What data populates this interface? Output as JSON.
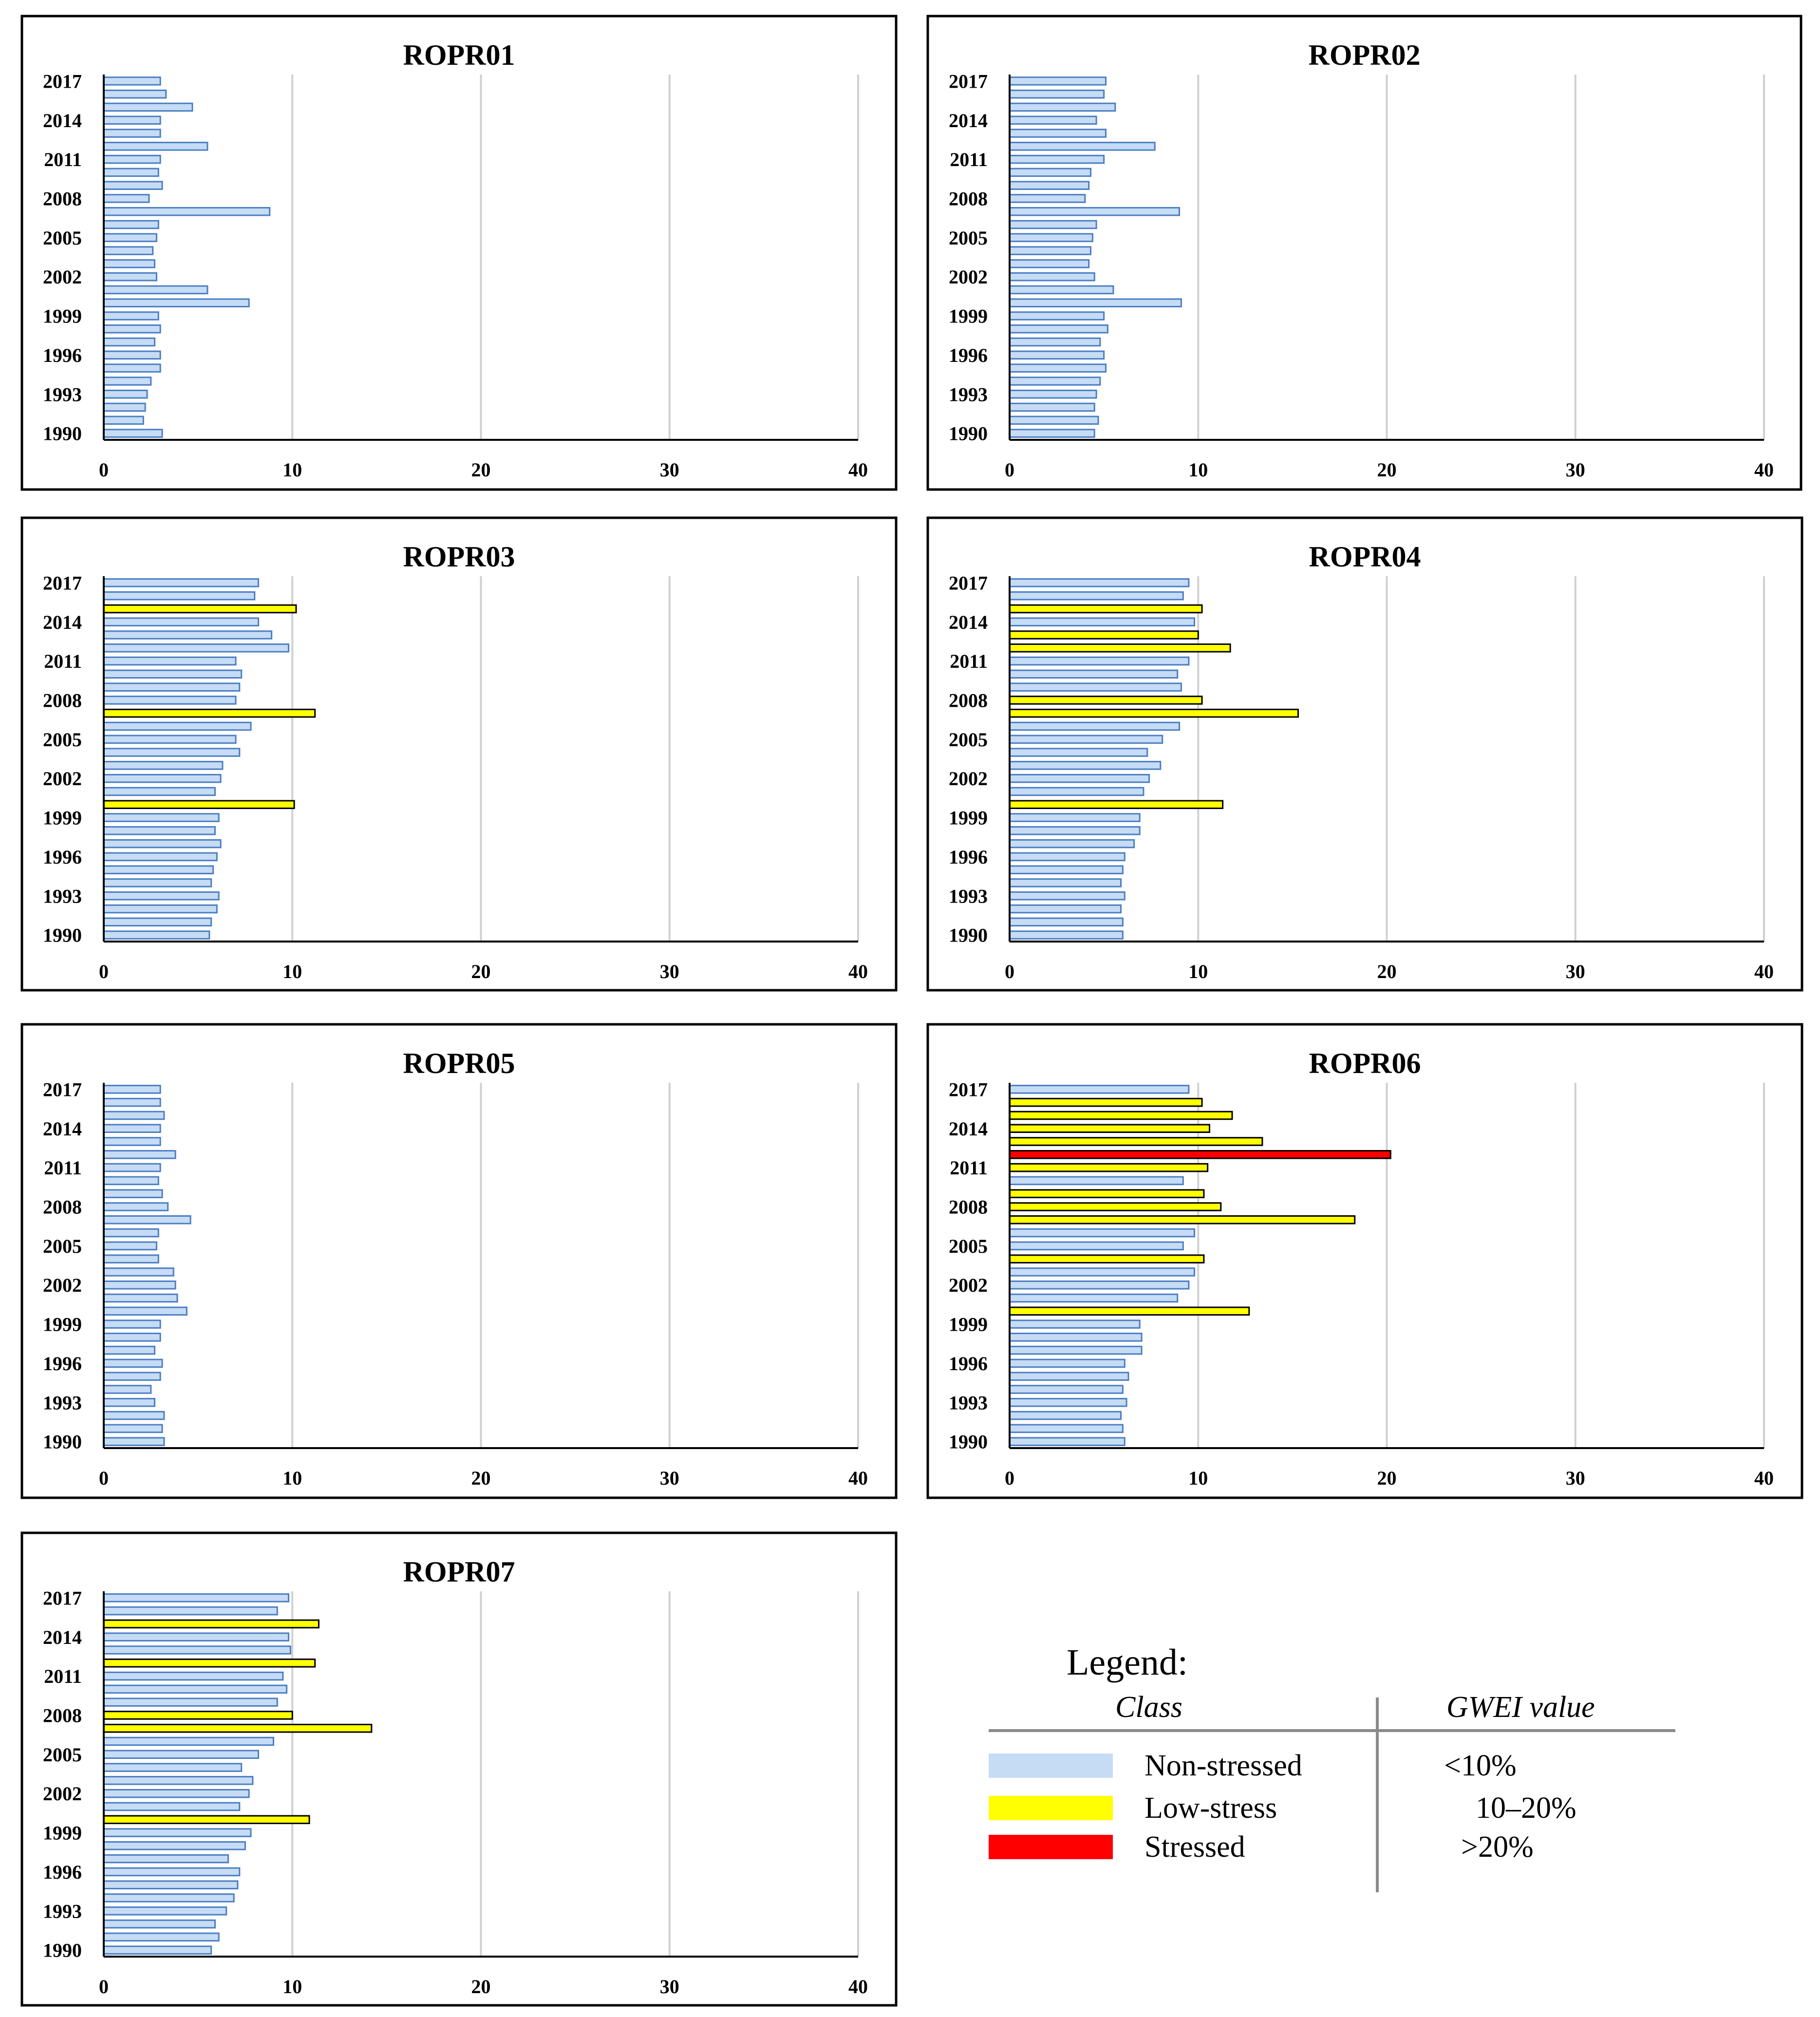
{
  "colors": {
    "non_stressed": "#c6dcf5",
    "low_stress": "#ffff00",
    "stressed": "#ff0000",
    "grid": "#d0d0d0",
    "axis": "#000000",
    "frame": "#000000"
  },
  "legend": {
    "title": "Legend:",
    "class_header": "Class",
    "value_header": "GWEI value",
    "items": [
      {
        "name": "Non-stressed",
        "range": "<10%",
        "color": "#c6dcf5"
      },
      {
        "name": "Low-stress",
        "range": "10–20%",
        "color": "#ffff00"
      },
      {
        "name": "Stressed",
        "range": ">20%",
        "color": "#ff0000"
      }
    ]
  },
  "chart_data": [
    {
      "type": "bar",
      "orientation": "horizontal",
      "title": "ROPR01",
      "xlim": [
        0,
        40
      ],
      "x_ticks": [
        0,
        10,
        20,
        30,
        40
      ],
      "y_tick_labels": [
        "2017",
        "2014",
        "2011",
        "2008",
        "2005",
        "2002",
        "1999",
        "1996",
        "1993",
        "1990"
      ],
      "categories": [
        2017,
        2016,
        2015,
        2014,
        2013,
        2012,
        2011,
        2010,
        2009,
        2008,
        2007,
        2006,
        2005,
        2004,
        2003,
        2002,
        2001,
        2000,
        1999,
        1998,
        1997,
        1996,
        1995,
        1994,
        1993,
        1992,
        1991,
        1990
      ],
      "values": [
        3.0,
        3.3,
        4.7,
        3.0,
        3.0,
        5.5,
        3.0,
        2.9,
        3.1,
        2.4,
        8.8,
        2.9,
        2.8,
        2.6,
        2.7,
        2.8,
        5.5,
        7.7,
        2.9,
        3.0,
        2.7,
        3.0,
        3.0,
        2.5,
        2.3,
        2.2,
        2.1,
        3.1
      ]
    },
    {
      "type": "bar",
      "orientation": "horizontal",
      "title": "ROPR02",
      "xlim": [
        0,
        40
      ],
      "x_ticks": [
        0,
        10,
        20,
        30,
        40
      ],
      "y_tick_labels": [
        "2017",
        "2014",
        "2011",
        "2008",
        "2005",
        "2002",
        "1999",
        "1996",
        "1993",
        "1990"
      ],
      "categories": [
        2017,
        2016,
        2015,
        2014,
        2013,
        2012,
        2011,
        2010,
        2009,
        2008,
        2007,
        2006,
        2005,
        2004,
        2003,
        2002,
        2001,
        2000,
        1999,
        1998,
        1997,
        1996,
        1995,
        1994,
        1993,
        1992,
        1991,
        1990
      ],
      "values": [
        5.1,
        5.0,
        5.6,
        4.6,
        5.1,
        7.7,
        5.0,
        4.3,
        4.2,
        4.0,
        9.0,
        4.6,
        4.4,
        4.3,
        4.2,
        4.5,
        5.5,
        9.1,
        5.0,
        5.2,
        4.8,
        5.0,
        5.1,
        4.8,
        4.6,
        4.5,
        4.7,
        4.5
      ]
    },
    {
      "type": "bar",
      "orientation": "horizontal",
      "title": "ROPR03",
      "xlim": [
        0,
        40
      ],
      "x_ticks": [
        0,
        10,
        20,
        30,
        40
      ],
      "y_tick_labels": [
        "2017",
        "2014",
        "2011",
        "2008",
        "2005",
        "2002",
        "1999",
        "1996",
        "1993",
        "1990"
      ],
      "categories": [
        2017,
        2016,
        2015,
        2014,
        2013,
        2012,
        2011,
        2010,
        2009,
        2008,
        2007,
        2006,
        2005,
        2004,
        2003,
        2002,
        2001,
        2000,
        1999,
        1998,
        1997,
        1996,
        1995,
        1994,
        1993,
        1992,
        1991,
        1990
      ],
      "values": [
        8.2,
        8.0,
        10.2,
        8.2,
        8.9,
        9.8,
        7.0,
        7.3,
        7.2,
        7.0,
        11.2,
        7.8,
        7.0,
        7.2,
        6.3,
        6.2,
        5.9,
        10.1,
        6.1,
        5.9,
        6.2,
        6.0,
        5.8,
        5.7,
        6.1,
        6.0,
        5.7,
        5.6
      ]
    },
    {
      "type": "bar",
      "orientation": "horizontal",
      "title": "ROPR04",
      "xlim": [
        0,
        40
      ],
      "x_ticks": [
        0,
        10,
        20,
        30,
        40
      ],
      "y_tick_labels": [
        "2017",
        "2014",
        "2011",
        "2008",
        "2005",
        "2002",
        "1999",
        "1996",
        "1993",
        "1990"
      ],
      "categories": [
        2017,
        2016,
        2015,
        2014,
        2013,
        2012,
        2011,
        2010,
        2009,
        2008,
        2007,
        2006,
        2005,
        2004,
        2003,
        2002,
        2001,
        2000,
        1999,
        1998,
        1997,
        1996,
        1995,
        1994,
        1993,
        1992,
        1991,
        1990
      ],
      "values": [
        9.5,
        9.2,
        10.2,
        9.8,
        10.0,
        11.7,
        9.5,
        8.9,
        9.1,
        10.2,
        15.3,
        9.0,
        8.1,
        7.3,
        8.0,
        7.4,
        7.1,
        11.3,
        6.9,
        6.9,
        6.6,
        6.1,
        6.0,
        5.9,
        6.1,
        5.9,
        6.0,
        6.0
      ]
    },
    {
      "type": "bar",
      "orientation": "horizontal",
      "title": "ROPR05",
      "xlim": [
        0,
        40
      ],
      "x_ticks": [
        0,
        10,
        20,
        30,
        40
      ],
      "y_tick_labels": [
        "2017",
        "2014",
        "2011",
        "2008",
        "2005",
        "2002",
        "1999",
        "1996",
        "1993",
        "1990"
      ],
      "categories": [
        2017,
        2016,
        2015,
        2014,
        2013,
        2012,
        2011,
        2010,
        2009,
        2008,
        2007,
        2006,
        2005,
        2004,
        2003,
        2002,
        2001,
        2000,
        1999,
        1998,
        1997,
        1996,
        1995,
        1994,
        1993,
        1992,
        1991,
        1990
      ],
      "values": [
        3.0,
        3.0,
        3.2,
        3.0,
        3.0,
        3.8,
        3.0,
        2.9,
        3.1,
        3.4,
        4.6,
        2.9,
        2.8,
        2.9,
        3.7,
        3.8,
        3.9,
        4.4,
        3.0,
        3.0,
        2.7,
        3.1,
        3.0,
        2.5,
        2.7,
        3.2,
        3.1,
        3.2
      ]
    },
    {
      "type": "bar",
      "orientation": "horizontal",
      "title": "ROPR06",
      "xlim": [
        0,
        40
      ],
      "x_ticks": [
        0,
        10,
        20,
        30,
        40
      ],
      "y_tick_labels": [
        "2017",
        "2014",
        "2011",
        "2008",
        "2005",
        "2002",
        "1999",
        "1996",
        "1993",
        "1990"
      ],
      "categories": [
        2017,
        2016,
        2015,
        2014,
        2013,
        2012,
        2011,
        2010,
        2009,
        2008,
        2007,
        2006,
        2005,
        2004,
        2003,
        2002,
        2001,
        2000,
        1999,
        1998,
        1997,
        1996,
        1995,
        1994,
        1993,
        1992,
        1991,
        1990
      ],
      "values": [
        9.5,
        10.2,
        11.8,
        10.6,
        13.4,
        20.2,
        10.5,
        9.2,
        10.3,
        11.2,
        18.3,
        9.8,
        9.2,
        10.3,
        9.8,
        9.5,
        8.9,
        12.7,
        6.9,
        7.0,
        7.0,
        6.1,
        6.3,
        6.0,
        6.2,
        5.9,
        6.0,
        6.1
      ]
    },
    {
      "type": "bar",
      "orientation": "horizontal",
      "title": "ROPR07",
      "xlim": [
        0,
        40
      ],
      "x_ticks": [
        0,
        10,
        20,
        30,
        40
      ],
      "y_tick_labels": [
        "2017",
        "2014",
        "2011",
        "2008",
        "2005",
        "2002",
        "1999",
        "1996",
        "1993",
        "1990"
      ],
      "categories": [
        2017,
        2016,
        2015,
        2014,
        2013,
        2012,
        2011,
        2010,
        2009,
        2008,
        2007,
        2006,
        2005,
        2004,
        2003,
        2002,
        2001,
        2000,
        1999,
        1998,
        1997,
        1996,
        1995,
        1994,
        1993,
        1992,
        1991,
        1990
      ],
      "values": [
        9.8,
        9.2,
        11.4,
        9.8,
        9.9,
        11.2,
        9.5,
        9.7,
        9.2,
        10.0,
        14.2,
        9.0,
        8.2,
        7.3,
        7.9,
        7.7,
        7.2,
        10.9,
        7.8,
        7.5,
        6.6,
        7.2,
        7.1,
        6.9,
        6.5,
        5.9,
        6.1,
        5.7
      ]
    }
  ]
}
